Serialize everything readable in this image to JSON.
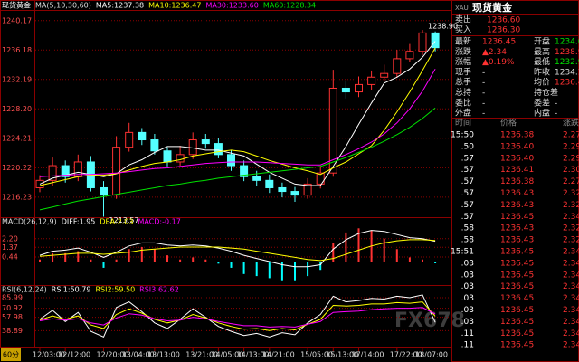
{
  "chart_data": [
    {
      "type": "candlestick",
      "title": "现货黄金",
      "subtitle": "MA(5,10,30,60)",
      "open": [
        1217.5,
        1218.5,
        1220.5,
        1219,
        1221,
        1217.5,
        1216.5,
        1223,
        1225,
        1224,
        1222.5,
        1221,
        1222,
        1224,
        1223.5,
        1222,
        1220.5,
        1219,
        1218.5,
        1217.5,
        1217,
        1216.5,
        1218,
        1219.5,
        1231,
        1230.5,
        1231.5,
        1232.5,
        1233,
        1235,
        1236,
        1238.5
      ],
      "high": [
        1219.2,
        1221.6,
        1221.2,
        1222,
        1221.8,
        1218.4,
        1224.5,
        1226.3,
        1225.6,
        1224.8,
        1223,
        1223.2,
        1225,
        1224.8,
        1224.2,
        1222.6,
        1221.2,
        1219.8,
        1219.3,
        1218.2,
        1217.6,
        1218.8,
        1220.4,
        1233.5,
        1232,
        1232.6,
        1233.4,
        1234.2,
        1236.2,
        1237,
        1238.9,
        1238.7
      ],
      "low": [
        1216.9,
        1217.8,
        1218.2,
        1218.4,
        1217,
        1213.57,
        1216,
        1222.4,
        1223.3,
        1222,
        1220.4,
        1220.5,
        1221.4,
        1222.8,
        1221.5,
        1219.8,
        1218.4,
        1217.8,
        1216.8,
        1216.2,
        1215.6,
        1216,
        1217.4,
        1219,
        1229.6,
        1229.8,
        1230.7,
        1232,
        1232.4,
        1234.6,
        1235.5,
        1236
      ],
      "close": [
        1218.5,
        1220.5,
        1219,
        1221,
        1217.5,
        1216.5,
        1223,
        1225,
        1224,
        1222.5,
        1221,
        1222,
        1224,
        1223.5,
        1222,
        1220.5,
        1219,
        1218.5,
        1217.5,
        1217,
        1216.5,
        1218,
        1219.5,
        1231,
        1230.5,
        1231.5,
        1232.5,
        1233,
        1235,
        1236,
        1238.5,
        1236.5
      ],
      "series": [
        {
          "name": "MA5:1237.38",
          "color": "#ffffff",
          "values": [
            1218,
            1218.8,
            1219.2,
            1219.6,
            1219.3,
            1219,
            1219.4,
            1220.6,
            1221.3,
            1222.3,
            1223.1,
            1223.1,
            1222.9,
            1222.6,
            1222.6,
            1222.2,
            1221.8,
            1220.7,
            1219.6,
            1218.8,
            1218,
            1217.8,
            1217.8,
            1220.4,
            1223.1,
            1226.1,
            1229,
            1231.7,
            1232.5,
            1233.6,
            1235.2,
            1237.38
          ]
        },
        {
          "name": "MA10:1236.47",
          "color": "#ffff00",
          "values": [
            1217.8,
            1218.2,
            1218.6,
            1219,
            1219.2,
            1219.2,
            1219.4,
            1219.9,
            1220.4,
            1220.8,
            1221,
            1221.3,
            1221.8,
            1222.1,
            1222.4,
            1222.6,
            1222.4,
            1221.8,
            1221.2,
            1220.7,
            1220.2,
            1219.8,
            1219.3,
            1220.2,
            1221,
            1222.1,
            1223.2,
            1225.3,
            1227.8,
            1230.5,
            1233.4,
            1236.47
          ]
        },
        {
          "name": "MA30:1233.60",
          "color": "#ff00ff",
          "values": [
            1219,
            1219.1,
            1219.2,
            1219.3,
            1219.3,
            1219.4,
            1219.5,
            1219.7,
            1219.9,
            1220.1,
            1220.2,
            1220.4,
            1220.6,
            1220.8,
            1220.9,
            1221,
            1221,
            1221,
            1220.9,
            1220.8,
            1220.7,
            1220.6,
            1220.6,
            1221.3,
            1222,
            1222.8,
            1223.7,
            1224.8,
            1226.3,
            1228.2,
            1230.6,
            1233.6
          ]
        },
        {
          "name": "MA60:1228.34",
          "color": "#00e000",
          "values": [
            1214.5,
            1214.9,
            1215.3,
            1215.7,
            1216,
            1216.3,
            1216.6,
            1216.9,
            1217.2,
            1217.5,
            1217.8,
            1218,
            1218.3,
            1218.5,
            1218.8,
            1219,
            1219.2,
            1219.4,
            1219.6,
            1219.8,
            1220,
            1220.2,
            1220.4,
            1221,
            1221.6,
            1222.3,
            1223,
            1223.8,
            1224.7,
            1225.7,
            1226.9,
            1228.34
          ]
        }
      ],
      "ylim": [
        1214,
        1241
      ],
      "yticks": [
        1240.17,
        1236.18,
        1232.19,
        {
          "value": 1228.2,
          "label": "1228.20"
        },
        1224.21,
        1220.22,
        1216.23
      ],
      "annotations": [
        {
          "label": "1238.90",
          "index": 30,
          "at": "high"
        },
        {
          "label": "1213.57",
          "index": 5,
          "at": "low"
        }
      ]
    },
    {
      "type": "macd",
      "title": "MACD(26,12,9)",
      "series": [
        {
          "name": "DIFF:1.95",
          "color": "#ffffff",
          "values": [
            0.6,
            1.0,
            1.1,
            1.3,
            0.9,
            0.4,
            0.9,
            1.5,
            1.8,
            1.8,
            1.6,
            1.5,
            1.6,
            1.5,
            1.3,
            1.0,
            0.6,
            0.3,
            0,
            -0.3,
            -0.5,
            -0.5,
            -0.3,
            1.2,
            2.1,
            2.7,
            3.0,
            2.9,
            2.6,
            2.3,
            2.2,
            1.95
          ]
        },
        {
          "name": "DEA:2.03",
          "color": "#ffff00",
          "values": [
            0.5,
            0.6,
            0.7,
            0.8,
            0.8,
            0.7,
            0.8,
            0.9,
            1.1,
            1.2,
            1.3,
            1.4,
            1.4,
            1.4,
            1.4,
            1.3,
            1.2,
            1.0,
            0.8,
            0.6,
            0.4,
            0.2,
            0.1,
            0.3,
            0.7,
            1.1,
            1.5,
            1.8,
            2.0,
            2.1,
            2.1,
            2.03
          ]
        }
      ],
      "histogram": {
        "name": "MACD:-0.17",
        "color": "#ff00ff",
        "up_color": "#ff3232",
        "down_color": "#00ffff",
        "values": [
          0.2,
          0.8,
          0.8,
          1.0,
          0.2,
          -0.6,
          0.2,
          1.2,
          1.4,
          1.2,
          0.6,
          0.2,
          0.4,
          0.2,
          -0.2,
          -0.6,
          -1.2,
          -1.4,
          -1.6,
          -1.8,
          -1.8,
          -1.4,
          -0.8,
          1.8,
          2.8,
          3.2,
          3.0,
          2.2,
          1.2,
          0.4,
          0.2,
          -0.17
        ]
      },
      "ylim": [
        -2,
        3.4
      ],
      "yticks": [
        {
          "value": 2.2,
          "label": "2.20"
        },
        1.37,
        0.44
      ]
    },
    {
      "type": "line",
      "title": "RSI(6,12,24)",
      "series": [
        {
          "name": "RSI1:50.79",
          "color": "#ffffff",
          "values": [
            55,
            68,
            52,
            65,
            38,
            30,
            72,
            80,
            66,
            50,
            42,
            55,
            70,
            58,
            45,
            38,
            32,
            35,
            30,
            36,
            33,
            50,
            62,
            88,
            80,
            82,
            85,
            84,
            88,
            86,
            90,
            50.79
          ]
        },
        {
          "name": "RSI2:59.50",
          "color": "#ffff00",
          "values": [
            54,
            60,
            55,
            60,
            47,
            42,
            62,
            70,
            64,
            55,
            50,
            54,
            62,
            57,
            50,
            45,
            41,
            42,
            39,
            42,
            40,
            48,
            55,
            75,
            74,
            75,
            77,
            77,
            79,
            78,
            80,
            59.5
          ]
        },
        {
          "name": "RSI3:62.62",
          "color": "#ff00ff",
          "values": [
            53,
            56,
            54,
            56,
            50,
            47,
            57,
            63,
            61,
            56,
            53,
            54,
            58,
            56,
            52,
            49,
            46,
            46,
            44,
            45,
            44,
            48,
            52,
            65,
            66,
            67,
            69,
            70,
            71,
            71,
            72,
            62.62
          ]
        }
      ],
      "ylim": [
        20,
        95
      ],
      "yticks": [
        85.99,
        70.92,
        57.98,
        38.89
      ],
      "xticks": [
        {
          "value": 0,
          "label": "12/03:00"
        },
        {
          "value": 2,
          "label": "12/12:00"
        },
        {
          "value": 5,
          "label": "12/20:00"
        },
        {
          "value": 7,
          "label": "13/04:00"
        },
        {
          "value": 9,
          "label": "13/13:00"
        },
        {
          "value": 12,
          "label": "13/21:00"
        },
        {
          "value": 14,
          "label": "14/05:00"
        },
        {
          "value": 16,
          "label": "14/13:00"
        },
        {
          "value": 18,
          "label": "14/21:00"
        },
        {
          "value": 21,
          "label": "15/05:00"
        },
        {
          "value": 23,
          "label": "15/13:00"
        },
        {
          "value": 25,
          "label": "17/14:00"
        },
        {
          "value": 28,
          "label": "17/22:00"
        },
        {
          "value": 30,
          "label": "18/07:00"
        }
      ]
    }
  ],
  "period": "60分",
  "watermark": "FX678",
  "quote": {
    "symbol": "XAU",
    "name": "现货黄金",
    "pairs": [
      [
        "卖出",
        "1236.60"
      ],
      [
        "买入",
        "1236.30"
      ]
    ],
    "rows": [
      [
        "最新",
        "1236.45",
        "开盘",
        "1234.00"
      ],
      [
        "涨跌",
        "▲2.34",
        "最高",
        "1238.90"
      ],
      [
        "涨幅",
        "▲0.19%",
        "最低",
        "1232.90"
      ],
      [
        "现手",
        "-",
        "昨收",
        "1234.11"
      ],
      [
        "总手",
        "-",
        "均价",
        "1236.40"
      ],
      [
        "总持",
        "-",
        "持仓差",
        "-"
      ],
      [
        "委比",
        "-",
        "委差",
        "-"
      ],
      [
        "外盘",
        "-",
        "内盘",
        "-"
      ]
    ]
  },
  "trades": {
    "header": [
      "时间",
      "价格",
      "涨跌"
    ],
    "rows": [
      [
        "15:50",
        "1236.38",
        "2.27"
      ],
      [
        ".50",
        "1236.40",
        "2.29"
      ],
      [
        ".57",
        "1236.40",
        "2.29"
      ],
      [
        ".57",
        "1236.41",
        "2.30"
      ],
      [
        ".57",
        "1236.38",
        "2.27"
      ],
      [
        ".57",
        "1236.43",
        "2.32"
      ],
      [
        ".57",
        "1236.43",
        "2.32"
      ],
      [
        ".57",
        "1236.45",
        "2.34"
      ],
      [
        ".58",
        "1236.43",
        "2.32"
      ],
      [
        ".58",
        "1236.43",
        "2.32"
      ],
      [
        "15:51",
        "1236.45",
        "2.34"
      ],
      [
        ".03",
        "1236.45",
        "2.34"
      ],
      [
        ".03",
        "1236.45",
        "2.34"
      ],
      [
        ".03",
        "1236.45",
        "2.34"
      ],
      [
        ".03",
        "1236.45",
        "2.34"
      ],
      [
        ".03",
        "1236.45",
        "2.34"
      ],
      [
        ".03",
        "1236.45",
        "2.34"
      ],
      [
        ".11",
        "1236.45",
        "2.34"
      ],
      [
        ".11",
        "1236.45",
        "2.34"
      ]
    ]
  }
}
